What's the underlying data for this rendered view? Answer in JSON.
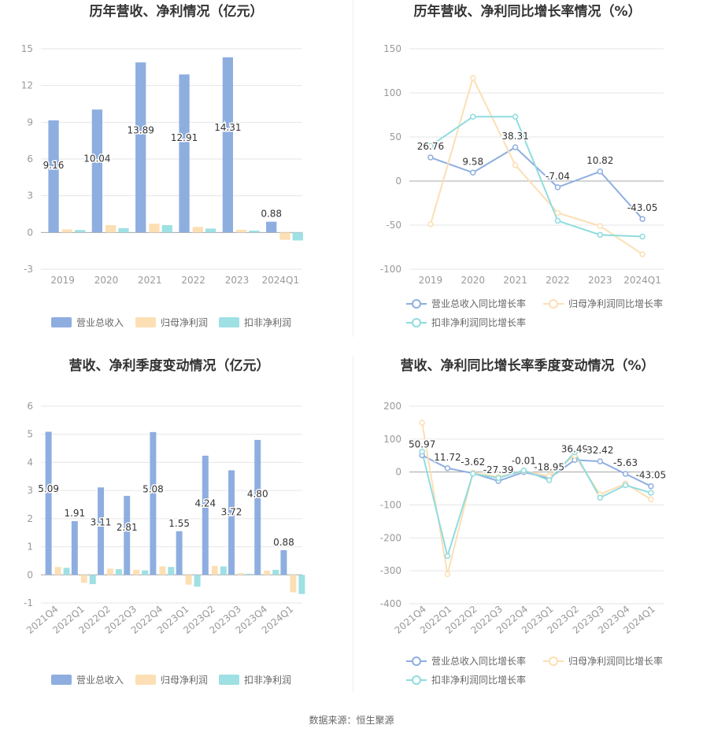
{
  "colors": {
    "revenue": "#8eaee0",
    "net_profit": "#fcdfb4",
    "deducted_profit": "#9ee0e3",
    "revenue_line": "#8eaee0",
    "net_profit_line": "#fcdfb4",
    "deducted_line": "#8fdcdf",
    "axis_text": "#999999",
    "title_text": "#333333",
    "grid": "#e6e6e6"
  },
  "source": "数据来源：恒生聚源",
  "chart_data": [
    {
      "id": "annual_values",
      "type": "bar",
      "title": "历年营收、净利情况（亿元）",
      "categories": [
        "2019",
        "2020",
        "2021",
        "2022",
        "2023",
        "2024Q1"
      ],
      "ylim": [
        -3,
        15
      ],
      "yticks": [
        -3,
        0,
        3,
        6,
        9,
        12,
        15
      ],
      "grid": true,
      "legend_position": "bottom",
      "series": [
        {
          "name": "营业总收入",
          "values": [
            9.16,
            10.04,
            13.89,
            12.91,
            14.31,
            0.88
          ],
          "labels": [
            "9.16",
            "10.04",
            "13.89",
            "12.91",
            "14.31",
            "0.88"
          ]
        },
        {
          "name": "归母净利润",
          "values": [
            0.25,
            0.6,
            0.72,
            0.45,
            0.22,
            -0.6
          ]
        },
        {
          "name": "扣非净利润",
          "values": [
            0.2,
            0.35,
            0.6,
            0.32,
            0.15,
            -0.65
          ]
        }
      ]
    },
    {
      "id": "annual_growth",
      "type": "line",
      "title": "历年营收、净利同比增长率情况（%）",
      "categories": [
        "2019",
        "2020",
        "2021",
        "2022",
        "2023",
        "2024Q1"
      ],
      "ylim": [
        -100,
        150
      ],
      "yticks": [
        -100,
        -50,
        0,
        50,
        100,
        150
      ],
      "grid": true,
      "legend_position": "bottom",
      "series": [
        {
          "name": "营业总收入同比增长率",
          "values": [
            26.76,
            9.58,
            38.31,
            -7.04,
            10.82,
            -43.05
          ],
          "labels": [
            "26.76",
            "9.58",
            "38.31",
            "-7.04",
            "10.82",
            "-43.05"
          ]
        },
        {
          "name": "归母净利润同比增长率",
          "values": [
            -49,
            117,
            18,
            -36,
            -51,
            -83
          ]
        },
        {
          "name": "扣非净利润同比增长率",
          "values": [
            40,
            73,
            73,
            -45,
            -61,
            -63
          ]
        }
      ]
    },
    {
      "id": "quarterly_values",
      "type": "bar",
      "title": "营收、净利季度变动情况（亿元）",
      "categories": [
        "2021Q4",
        "2022Q1",
        "2022Q2",
        "2022Q3",
        "2022Q4",
        "2023Q1",
        "2023Q2",
        "2023Q3",
        "2023Q4",
        "2024Q1"
      ],
      "ylim": [
        -1,
        6
      ],
      "yticks": [
        -1,
        0,
        1,
        2,
        3,
        4,
        5,
        6
      ],
      "grid": true,
      "legend_position": "bottom",
      "series": [
        {
          "name": "营业总收入",
          "values": [
            5.09,
            1.91,
            3.11,
            2.81,
            5.08,
            1.55,
            4.24,
            3.72,
            4.8,
            0.88
          ],
          "labels": [
            "5.09",
            "1.91",
            "3.11",
            "2.81",
            "5.08",
            "1.55",
            "4.24",
            "3.72",
            "4.80",
            "0.88"
          ]
        },
        {
          "name": "归母净利润",
          "values": [
            0.28,
            -0.28,
            0.22,
            0.18,
            0.3,
            -0.35,
            0.32,
            0.06,
            0.15,
            -0.62
          ]
        },
        {
          "name": "扣非净利润",
          "values": [
            0.25,
            -0.33,
            0.2,
            0.16,
            0.28,
            -0.42,
            0.3,
            0.04,
            0.18,
            -0.68
          ]
        }
      ]
    },
    {
      "id": "quarterly_growth",
      "type": "line",
      "title": "营收、净利同比增长率季度变动情况（%）",
      "categories": [
        "2021Q4",
        "2022Q1",
        "2022Q2",
        "2022Q3",
        "2022Q4",
        "2023Q1",
        "2023Q2",
        "2023Q3",
        "2023Q4",
        "2024Q1"
      ],
      "ylim": [
        -400,
        200
      ],
      "yticks": [
        -400,
        -300,
        -200,
        -100,
        0,
        100,
        200
      ],
      "grid": true,
      "legend_position": "bottom",
      "series": [
        {
          "name": "营业总收入同比增长率",
          "values": [
            50.97,
            11.72,
            -3.62,
            -27.39,
            -0.01,
            -18.95,
            36.49,
            32.42,
            -5.63,
            -43.05
          ],
          "labels": [
            "50.97",
            "11.72",
            "-3.62",
            "-27.39",
            "-0.01",
            "-18.95",
            "36.49",
            "32.42",
            "-5.63",
            "-43.05"
          ]
        },
        {
          "name": "归母净利润同比增长率",
          "values": [
            150,
            -310,
            -2,
            -15,
            3,
            -12,
            50,
            -68,
            -35,
            -83
          ]
        },
        {
          "name": "扣非净利润同比增长率",
          "values": [
            62,
            -255,
            -5,
            -18,
            5,
            -25,
            60,
            -78,
            -40,
            -63
          ]
        }
      ]
    }
  ]
}
